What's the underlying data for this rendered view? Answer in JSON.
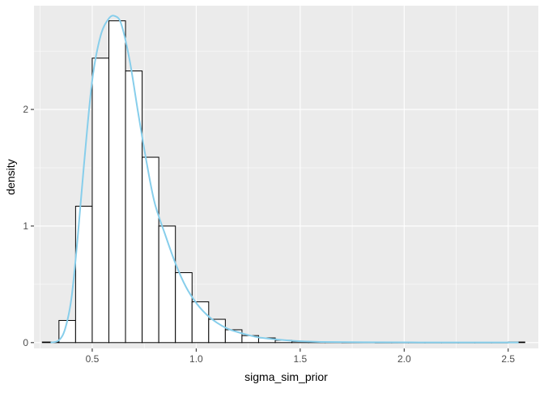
{
  "chart_data": {
    "type": "histogram",
    "title": "",
    "xlabel": "sigma_sim_prior",
    "ylabel": "density",
    "xlim": [
      0.22,
      2.645
    ],
    "ylim": [
      -0.05,
      2.89
    ],
    "x_ticks": [
      0.5,
      1.0,
      1.5,
      2.0,
      2.5
    ],
    "x_tick_labels": [
      "0.5",
      "1.0",
      "1.5",
      "2.0",
      "2.5"
    ],
    "y_ticks": [
      0,
      1,
      2
    ],
    "y_tick_labels": [
      "0",
      "1",
      "2"
    ],
    "grid": true,
    "legend": "none",
    "bin_width": 0.08,
    "bins": {
      "starts": [
        0.26,
        0.34,
        0.42,
        0.5,
        0.58,
        0.66,
        0.74,
        0.82,
        0.9,
        0.98,
        1.06,
        1.14,
        1.22,
        1.3,
        1.38,
        1.46,
        1.54,
        1.62,
        1.7,
        1.78,
        1.86,
        1.94,
        2.02,
        2.1,
        2.18,
        2.26,
        2.34,
        2.42,
        2.5
      ],
      "values": [
        0.005,
        0.19,
        1.17,
        2.44,
        2.76,
        2.33,
        1.59,
        1.0,
        0.6,
        0.35,
        0.2,
        0.11,
        0.06,
        0.04,
        0.02,
        0.01,
        0.005,
        0.005,
        0.003,
        0.003,
        0.002,
        0.002,
        0.002,
        0.002,
        0.002,
        0.002,
        0.002,
        0.002,
        0.005
      ]
    },
    "density": {
      "x": [
        0.3,
        0.34,
        0.37,
        0.4,
        0.43,
        0.46,
        0.5,
        0.54,
        0.58,
        0.61,
        0.64,
        0.68,
        0.72,
        0.76,
        0.8,
        0.85,
        0.9,
        0.95,
        1.0,
        1.05,
        1.1,
        1.15,
        1.2,
        1.25,
        1.3,
        1.4,
        1.5,
        1.6,
        1.8,
        2.0,
        2.2,
        2.34,
        2.55
      ],
      "y": [
        0.0,
        0.02,
        0.12,
        0.38,
        0.9,
        1.52,
        2.25,
        2.63,
        2.78,
        2.8,
        2.73,
        2.42,
        1.98,
        1.56,
        1.2,
        0.93,
        0.68,
        0.48,
        0.34,
        0.24,
        0.17,
        0.12,
        0.09,
        0.065,
        0.045,
        0.025,
        0.012,
        0.006,
        0.003,
        0.002,
        0.001,
        0.001,
        0.001
      ]
    },
    "colors": {
      "panel_background": "#ebebeb",
      "grid": "#ffffff",
      "bar_fill": "#ffffff",
      "bar_outline": "#000000",
      "density_line": "#87ceeb"
    }
  }
}
